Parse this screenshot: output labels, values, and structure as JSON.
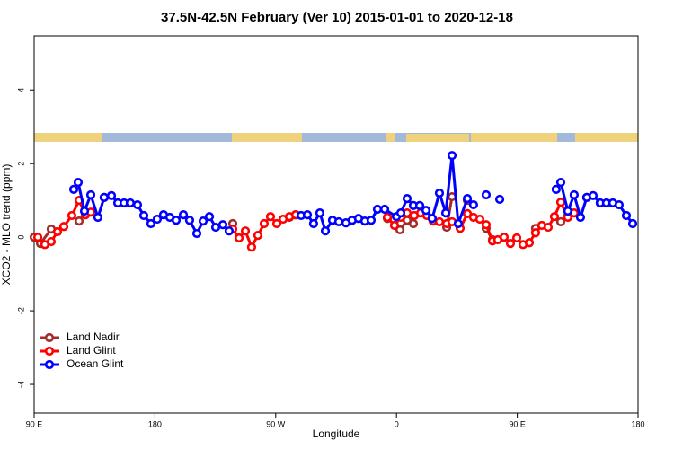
{
  "chart_data": {
    "type": "line",
    "title": "37.5N-42.5N February (Ver 10)   2015-01-01 to 2020-12-18",
    "x_label": "Longitude",
    "y_label": "XCO2 - MLO trend (ppm)",
    "xlim": [
      90,
      540
    ],
    "ylim": [
      -4.78,
      5.47
    ],
    "xticks": [
      {
        "value": 90,
        "label": "90 E"
      },
      {
        "value": 180,
        "label": "180"
      },
      {
        "value": 270,
        "label": "90 W"
      },
      {
        "value": 360,
        "label": "0"
      },
      {
        "value": 450,
        "label": "90 E"
      },
      {
        "value": 540,
        "label": "180"
      }
    ],
    "yticks": [
      -4,
      -2,
      0,
      2,
      4
    ],
    "legend": "bottomleft",
    "series": [
      {
        "name": "Land Nadir",
        "color": "#a52a2a",
        "x": [
          90,
          94.7,
          102.7,
          null,
          123.5,
          128.2,
          null,
          142.2,
          null,
          238.0,
          null,
          280.2,
          284.9,
          null,
          353.2,
          362.6,
          367.9,
          372.6,
          null,
          397.4,
          401.4,
          null,
          412.8,
          null,
          426.8,
          431.5,
          null,
          463.6,
          null,
          482.4,
          487.7,
          null,
          501.8
        ],
        "values": [
          0.0,
          -0.17,
          0.22,
          null,
          0.44,
          0.68,
          null,
          1.08,
          null,
          0.37,
          null,
          0.54,
          0.61,
          null,
          0.51,
          0.2,
          0.46,
          0.37,
          null,
          0.27,
          1.1,
          null,
          1.0,
          null,
          0.24,
          -0.07,
          null,
          0.24,
          null,
          0.42,
          0.59,
          null,
          1.08
        ]
      },
      {
        "name": "Land Glint",
        "color": "#ff0000",
        "x": [
          92.7,
          98.0,
          102.7,
          107.4,
          112.1,
          118.1,
          123.5,
          128.2,
          132.2,
          null,
          238.0,
          242.7,
          247.4,
          252.0,
          256.7,
          261.4,
          266.1,
          270.8,
          275.5,
          280.2,
          284.9,
          null,
          353.2,
          358.5,
          363.2,
          367.9,
          373.3,
          378.0,
          382.6,
          387.3,
          392.0,
          397.4,
          401.4,
          407.4,
          412.8,
          417.4,
          422.1,
          426.8,
          431.5,
          435.5,
          440.2,
          444.9,
          449.6,
          454.3,
          459.0,
          463.6,
          468.3,
          473.0,
          477.7,
          482.4,
          487.7,
          492.4
        ],
        "values": [
          0.0,
          -0.2,
          -0.12,
          0.15,
          0.29,
          0.59,
          1.0,
          0.61,
          0.68,
          null,
          0.22,
          -0.02,
          0.17,
          -0.27,
          0.05,
          0.37,
          0.56,
          0.37,
          0.49,
          0.56,
          0.61,
          null,
          0.54,
          0.32,
          0.54,
          0.66,
          0.59,
          0.66,
          0.59,
          0.44,
          0.42,
          0.37,
          0.42,
          0.24,
          0.64,
          0.54,
          0.49,
          0.34,
          -0.1,
          -0.07,
          0.0,
          -0.17,
          -0.02,
          -0.2,
          -0.15,
          0.12,
          0.32,
          0.27,
          0.56,
          0.95,
          0.54,
          0.66
        ]
      },
      {
        "name": "Ocean Glint",
        "color": "#0000ff",
        "x": [
          119.5,
          122.8,
          127.5,
          132.2,
          137.5,
          142.2,
          147.6,
          152.3,
          157.0,
          161.6,
          167.0,
          171.7,
          177.0,
          181.7,
          186.4,
          191.1,
          195.8,
          201.2,
          205.8,
          211.2,
          215.9,
          220.6,
          225.3,
          230.6,
          235.3,
          null,
          288.9,
          293.6,
          298.2,
          302.9,
          307.0,
          312.3,
          317.0,
          322.3,
          327.0,
          331.7,
          336.4,
          341.1,
          345.8,
          351.2,
          359.9,
          363.2,
          367.9,
          372.6,
          377.3,
          382.0,
          386.6,
          392.0,
          396.7,
          401.4,
          406.0,
          412.8,
          417.4,
          null,
          426.8,
          null,
          436.9,
          null,
          479.0,
          482.4,
          487.7,
          492.4,
          497.1,
          501.8,
          506.5,
          511.8,
          516.5,
          521.2,
          525.9,
          531.3,
          536.0
        ],
        "values": [
          1.3,
          1.49,
          0.71,
          1.15,
          0.54,
          1.08,
          1.13,
          0.93,
          0.93,
          0.93,
          0.88,
          0.59,
          0.37,
          0.49,
          0.61,
          0.54,
          0.46,
          0.61,
          0.46,
          0.1,
          0.44,
          0.56,
          0.27,
          0.34,
          0.17,
          null,
          0.59,
          0.61,
          0.37,
          0.66,
          0.17,
          0.46,
          0.42,
          0.39,
          0.46,
          0.51,
          0.44,
          0.46,
          0.76,
          0.76,
          0.56,
          0.66,
          1.05,
          0.86,
          0.86,
          0.73,
          0.51,
          1.2,
          0.66,
          2.22,
          0.37,
          1.05,
          0.88,
          null,
          1.15,
          null,
          1.03,
          null,
          1.3,
          1.49,
          0.71,
          1.15,
          0.54,
          1.08,
          1.13,
          0.93,
          0.93,
          0.93,
          0.88,
          0.59,
          0.37
        ]
      }
    ]
  }
}
